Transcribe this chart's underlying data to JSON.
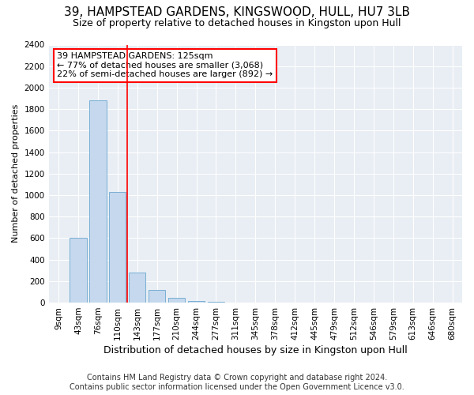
{
  "title": "39, HAMPSTEAD GARDENS, KINGSWOOD, HULL, HU7 3LB",
  "subtitle": "Size of property relative to detached houses in Kingston upon Hull",
  "xlabel": "Distribution of detached houses by size in Kingston upon Hull",
  "ylabel": "Number of detached properties",
  "footnote1": "Contains HM Land Registry data © Crown copyright and database right 2024.",
  "footnote2": "Contains public sector information licensed under the Open Government Licence v3.0.",
  "categories": [
    "9sqm",
    "43sqm",
    "76sqm",
    "110sqm",
    "143sqm",
    "177sqm",
    "210sqm",
    "244sqm",
    "277sqm",
    "311sqm",
    "345sqm",
    "378sqm",
    "412sqm",
    "445sqm",
    "479sqm",
    "512sqm",
    "546sqm",
    "579sqm",
    "613sqm",
    "646sqm",
    "680sqm"
  ],
  "values": [
    0,
    600,
    1880,
    1030,
    280,
    115,
    45,
    18,
    8,
    4,
    2,
    2,
    0,
    0,
    0,
    0,
    0,
    0,
    0,
    0,
    0
  ],
  "bar_color": "#c5d8ed",
  "bar_edge_color": "#7aafd4",
  "property_label": "39 HAMPSTEAD GARDENS: 125sqm",
  "annotation_line1": "← 77% of detached houses are smaller (3,068)",
  "annotation_line2": "22% of semi-detached houses are larger (892) →",
  "annotation_box_color": "white",
  "annotation_box_edge": "red",
  "vline_color": "red",
  "vline_x": 3.5,
  "ylim": [
    0,
    2400
  ],
  "yticks": [
    0,
    200,
    400,
    600,
    800,
    1000,
    1200,
    1400,
    1600,
    1800,
    2000,
    2200,
    2400
  ],
  "bg_color": "#e8eef4",
  "title_fontsize": 11,
  "subtitle_fontsize": 9,
  "ylabel_fontsize": 8,
  "xlabel_fontsize": 9,
  "tick_fontsize": 7.5,
  "annot_fontsize": 8,
  "footnote_fontsize": 7
}
